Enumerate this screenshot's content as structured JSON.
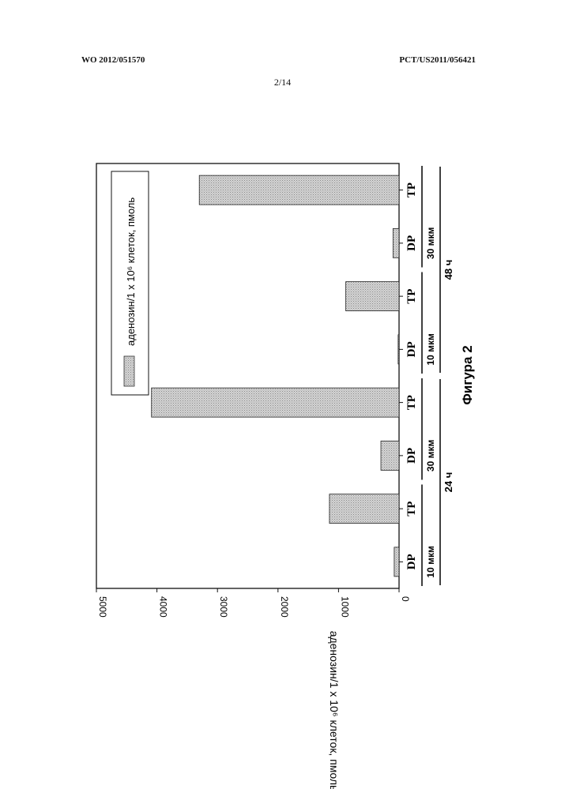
{
  "header": {
    "left": "WO 2012/051570",
    "right": "PCT/US2011/056421",
    "page": "2/14"
  },
  "figure_caption": "Фигура 2",
  "chart_data": {
    "type": "bar",
    "orientation": "rotated-90",
    "categories": [
      "DP",
      "TP",
      "DP",
      "TP",
      "DP",
      "TP",
      "DP",
      "TP"
    ],
    "concentration_labels": [
      "10 мкм",
      "30 мкм",
      "10 мкм",
      "30 мкм"
    ],
    "time_labels": [
      "24 ч",
      "48 ч"
    ],
    "series": [
      {
        "name": "аденозин/1 x 10⁶ клеток, пмоль",
        "values": [
          80,
          1150,
          300,
          4090,
          15,
          880,
          100,
          3300
        ]
      }
    ],
    "ylabel": "аденозин/1 x 10⁶ клеток, пмоль",
    "yticks": [
      "0",
      "1000",
      "2000",
      "3000",
      "4000",
      "5000"
    ],
    "ylim": [
      0,
      5000
    ],
    "legend_position": "top-right",
    "grid": false,
    "bar_color": "#c8c8c8"
  }
}
